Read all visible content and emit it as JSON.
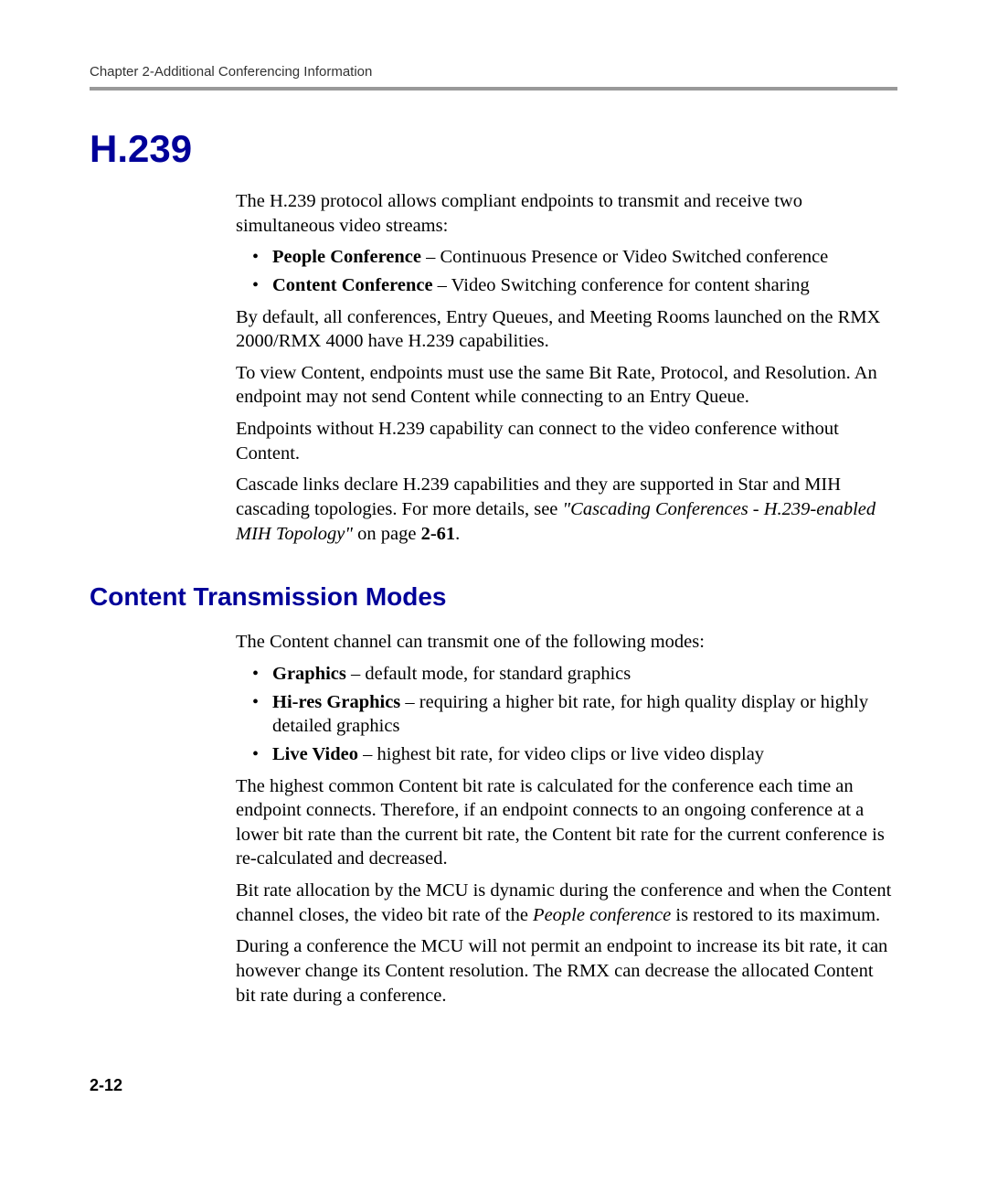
{
  "header": {
    "running": "Chapter 2-Additional Conferencing Information"
  },
  "section1": {
    "title": "H.239",
    "intro": "The H.239 protocol allows compliant endpoints to transmit and receive two simultaneous video streams:",
    "bullets": [
      {
        "bold": "People Conference",
        "rest": " – Continuous Presence or Video Switched conference"
      },
      {
        "bold": "Content Conference",
        "rest": " – Video Switching conference for content sharing"
      }
    ],
    "p1": "By default, all conferences, Entry Queues, and Meeting Rooms launched on the RMX 2000/RMX 4000 have H.239 capabilities.",
    "p2": "To view Content, endpoints must use the same Bit Rate, Protocol, and Resolution. An endpoint may not send Content while connecting to an Entry Queue.",
    "p3": "Endpoints without H.239 capability can connect to the video conference without Content.",
    "p4a": "Cascade links declare H.239 capabilities and they are supported in Star and MIH cascading topologies. For more details, see ",
    "p4_italic": "\"Cascading Conferences - H.239-enabled MIH Topology\"",
    "p4b": " on page ",
    "p4_bold": "2-61",
    "p4c": "."
  },
  "section2": {
    "title": "Content Transmission Modes",
    "intro": "The Content channel can transmit one of the following modes:",
    "bullets": [
      {
        "bold": "Graphics",
        "rest": " – default mode, for standard graphics"
      },
      {
        "bold": "Hi-res Graphics",
        "rest": " – requiring a higher bit rate, for high quality display or highly detailed graphics"
      },
      {
        "bold": "Live Video",
        "rest": " – highest bit rate, for video clips or live video display"
      }
    ],
    "p1": "The highest common Content bit rate is calculated for the conference each time an endpoint connects. Therefore, if an endpoint connects to an ongoing conference at a lower bit rate than the current bit rate, the Content bit rate for the current conference is re-calculated and decreased.",
    "p2a": "Bit rate allocation by the MCU is dynamic during the conference and when the Content channel closes, the video bit rate of the ",
    "p2_italic": "People conference",
    "p2b": " is restored to its maximum.",
    "p3": "During a conference the MCU will not permit an endpoint to increase its bit rate, it can however change its Content resolution. The RMX can decrease the allocated Content bit rate during a conference."
  },
  "pagenum": "2-12",
  "colors": {
    "heading": "#000099",
    "rule": "#999999",
    "text": "#000000",
    "bg": "#ffffff"
  }
}
